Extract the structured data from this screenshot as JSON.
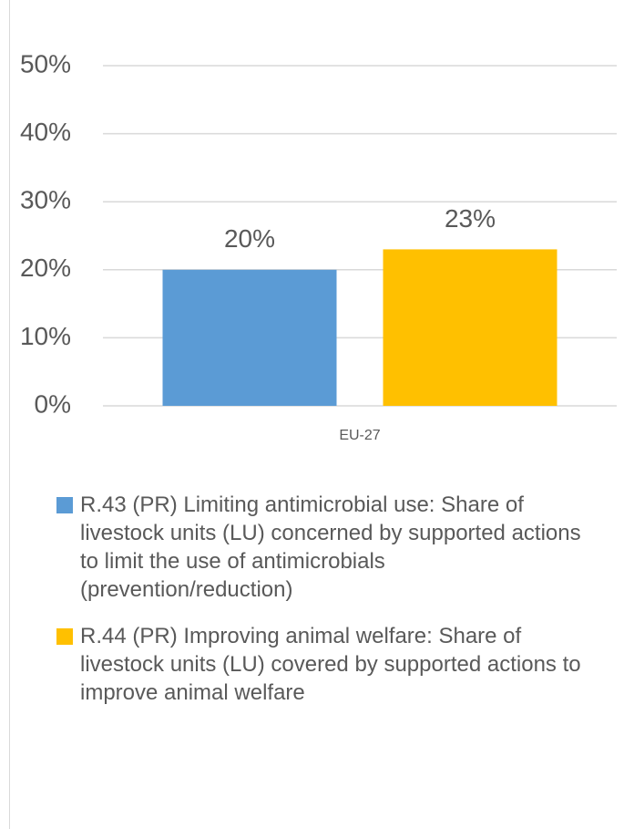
{
  "chart_data": {
    "type": "bar",
    "categories": [
      "EU-27"
    ],
    "series": [
      {
        "name": "R.43 (PR) Limiting antimicrobial use: Share of livestock units (LU) concerned by supported actions to limit the use of antimicrobials (prevention/reduction)",
        "color": "#5b9bd5",
        "values": [
          20
        ],
        "value_labels": [
          "20%"
        ]
      },
      {
        "name": "R.44 (PR) Improving animal welfare: Share of livestock units (LU) covered by supported actions to improve animal welfare",
        "color": "#ffc000",
        "values": [
          23
        ],
        "value_labels": [
          "23%"
        ]
      }
    ],
    "ylim": [
      0,
      50
    ],
    "yticks": [
      {
        "value": 0,
        "label": "0%"
      },
      {
        "value": 10,
        "label": "10%"
      },
      {
        "value": 20,
        "label": "20%"
      },
      {
        "value": 30,
        "label": "30%"
      },
      {
        "value": 40,
        "label": "40%"
      },
      {
        "value": 50,
        "label": "50%"
      }
    ],
    "grid": true,
    "legend": "bottom"
  }
}
